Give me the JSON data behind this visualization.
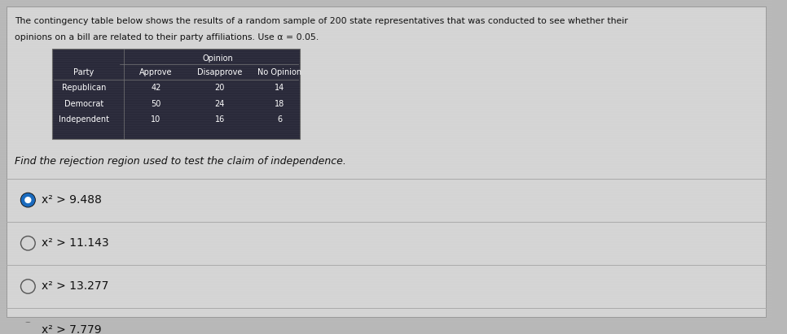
{
  "title_line1": "The contingency table below shows the results of a random sample of 200 state representatives that was conducted to see whether their",
  "title_line2": "opinions on a bill are related to their party affiliations. Use α = 0.05.",
  "table": {
    "col_header_top": "Opinion",
    "col_headers": [
      "Party",
      "Approve",
      "Disapprove",
      "No Opinion"
    ],
    "rows": [
      [
        "Republican",
        "42",
        "20",
        "14"
      ],
      [
        "Democrat",
        "50",
        "24",
        "18"
      ],
      [
        "Independent",
        "10",
        "16",
        "6"
      ]
    ]
  },
  "question": "Find the rejection region used to test the claim of independence.",
  "options": [
    {
      "label": "x² > 9.488",
      "selected": true
    },
    {
      "label": "x² > 11.143",
      "selected": false
    },
    {
      "label": "x² > 13.277",
      "selected": false
    },
    {
      "label": "x² > 7.779",
      "selected": false
    }
  ],
  "bg_color": "#b8b8b8",
  "table_bg": "#2a2a3a",
  "table_border": "#666666",
  "text_color_dark": "#111111",
  "text_color_light": "#ffffff",
  "selected_color": "#1a6bbf",
  "unselected_color": "#777777",
  "option_line_color": "#999999",
  "white_box_bg": "#d8d8d8"
}
